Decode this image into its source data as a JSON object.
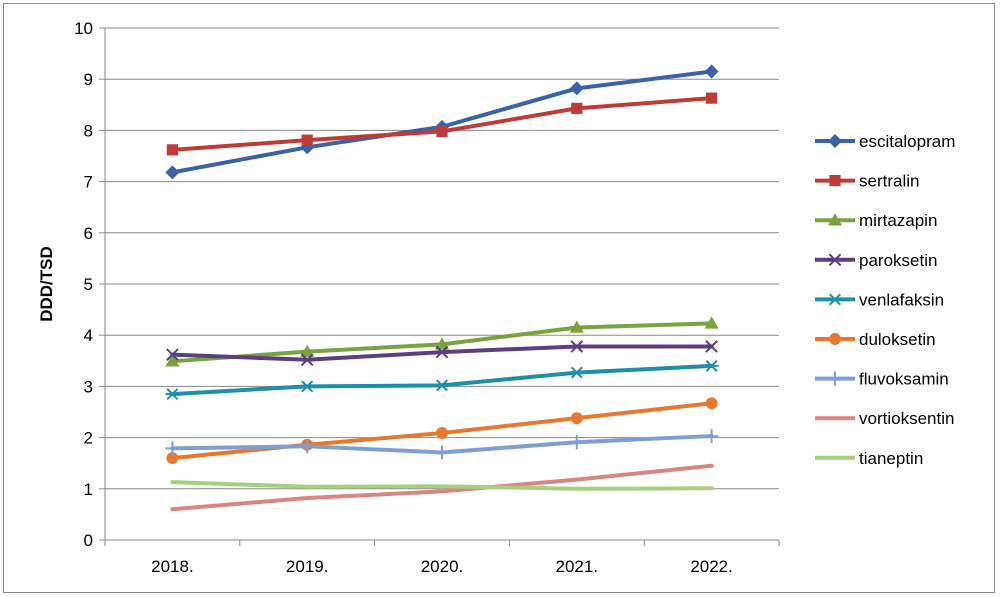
{
  "chart_data": {
    "type": "line",
    "categories": [
      "2018.",
      "2019.",
      "2020.",
      "2021.",
      "2022."
    ],
    "ylabel": "DDD/TSD",
    "ylim": [
      0,
      10
    ],
    "yticks": [
      0,
      1,
      2,
      3,
      4,
      5,
      6,
      7,
      8,
      9,
      10
    ],
    "grid": true,
    "legend_position": "right",
    "series": [
      {
        "name": "escitalopram",
        "color": "#3a62a7",
        "marker": "diamond",
        "values": [
          7.18,
          7.67,
          8.07,
          8.82,
          9.15
        ]
      },
      {
        "name": "sertralin",
        "color": "#be3b37",
        "marker": "square",
        "values": [
          7.62,
          7.81,
          7.98,
          8.43,
          8.63
        ]
      },
      {
        "name": "mirtazapin",
        "color": "#79a33e",
        "marker": "triangle",
        "values": [
          3.49,
          3.68,
          3.82,
          4.15,
          4.23
        ]
      },
      {
        "name": "paroksetin",
        "color": "#5b3f81",
        "marker": "x",
        "values": [
          3.62,
          3.52,
          3.67,
          3.78,
          3.78
        ]
      },
      {
        "name": "venlafaksin",
        "color": "#1f8ea6",
        "marker": "asterisk",
        "values": [
          2.85,
          3.0,
          3.02,
          3.27,
          3.4
        ]
      },
      {
        "name": "duloksetin",
        "color": "#e8782e",
        "marker": "circle",
        "values": [
          1.6,
          1.86,
          2.09,
          2.38,
          2.67
        ]
      },
      {
        "name": "fluvoksamin",
        "color": "#7f9fd4",
        "marker": "plus",
        "values": [
          1.79,
          1.83,
          1.71,
          1.91,
          2.03
        ]
      },
      {
        "name": "vortioksentin",
        "color": "#d98582",
        "marker": "none",
        "values": [
          0.6,
          0.82,
          0.95,
          1.18,
          1.45
        ]
      },
      {
        "name": "tianeptin",
        "color": "#a6cf7f",
        "marker": "none",
        "values": [
          1.13,
          1.04,
          1.05,
          1.0,
          1.01
        ]
      }
    ]
  }
}
